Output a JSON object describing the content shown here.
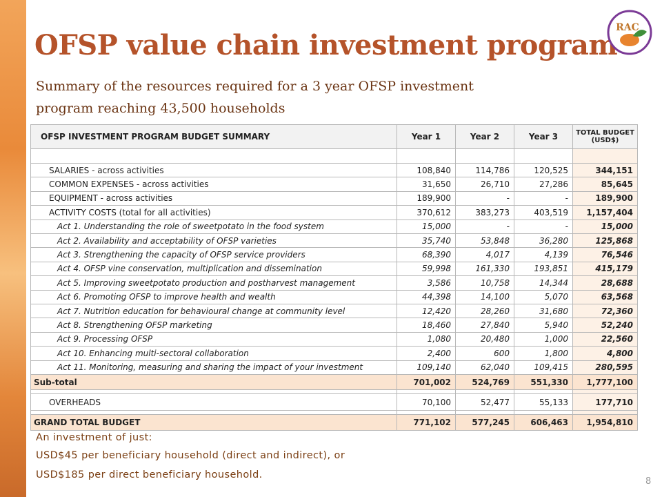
{
  "header": {
    "title": "OFSP value chain investment program",
    "subtitle_lines": [
      "Summary of the resources required for a 3 year OFSP investment",
      "program reaching 43,500 households"
    ],
    "logo": "RAC"
  },
  "table": {
    "columns": [
      "OFSP INVESTMENT PROGRAM BUDGET SUMMARY",
      "Year 1",
      "Year 2",
      "Year 3",
      "TOTAL BUDGET\n(USD$)"
    ],
    "main_rows": [
      [
        "SALARIES - across activities",
        "108,840",
        "114,786",
        "120,525",
        "344,151"
      ],
      [
        "COMMON EXPENSES  - across activities",
        "31,650",
        "26,710",
        "27,286",
        "85,645"
      ],
      [
        "EQUIPMENT - across activities",
        "189,900",
        "-",
        "-",
        "189,900"
      ],
      [
        "ACTIVITY COSTS (total for all activities)",
        "370,612",
        "383,273",
        "403,519",
        "1,157,404"
      ]
    ],
    "activity_rows": [
      [
        "Act 1. Understanding the role of sweetpotato in the food system",
        "15,000",
        "-",
        "-",
        "15,000"
      ],
      [
        "Act 2. Availability and acceptability of OFSP varieties",
        "35,740",
        "53,848",
        "36,280",
        "125,868"
      ],
      [
        "Act 3. Strengthening the capacity of OFSP service providers",
        "68,390",
        "4,017",
        "4,139",
        "76,546"
      ],
      [
        "Act 4. OFSP vine conservation, multiplication and dissemination",
        "59,998",
        "161,330",
        "193,851",
        "415,179"
      ],
      [
        "Act 5. Improving sweetpotato production and postharvest management",
        "3,586",
        "10,758",
        "14,344",
        "28,688"
      ],
      [
        "Act 6. Promoting OFSP to improve health and wealth",
        "44,398",
        "14,100",
        "5,070",
        "63,568"
      ],
      [
        "Act 7. Nutrition education for behavioural change at community level",
        "12,420",
        "28,260",
        "31,680",
        "72,360"
      ],
      [
        "Act 8. Strengthening OFSP marketing",
        "18,460",
        "27,840",
        "5,940",
        "52,240"
      ],
      [
        "Act 9. Processing OFSP",
        "1,080",
        "20,480",
        "1,000",
        "22,560"
      ],
      [
        "Act 10. Enhancing multi-sectoral collaboration",
        "2,400",
        "600",
        "1,800",
        "4,800"
      ],
      [
        "Act 11. Monitoring, measuring and sharing the impact of your investment",
        "109,140",
        "62,040",
        "109,415",
        "280,595"
      ]
    ],
    "subtotal": [
      "Sub-total",
      "701,002",
      "524,769",
      "551,330",
      "1,777,100"
    ],
    "overheads": [
      "OVERHEADS",
      "70,100",
      "52,477",
      "55,133",
      "177,710"
    ],
    "grand_total": [
      "GRAND TOTAL BUDGET",
      "771,102",
      "577,245",
      "606,463",
      "1,954,810"
    ]
  },
  "footer_lines": [
    "An investment of just:",
    "USD$45 per beneficiary household (direct and indirect), or",
    "USD$185 per direct beneficiary household."
  ],
  "page_number": "8"
}
